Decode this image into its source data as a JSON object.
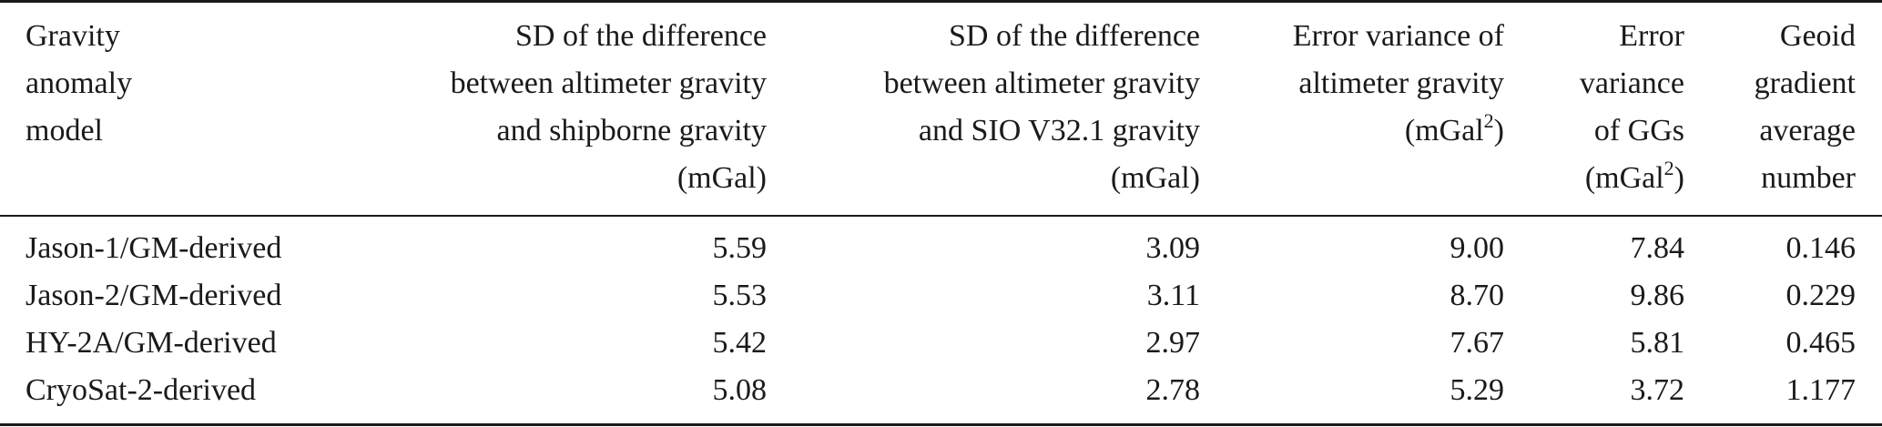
{
  "table": {
    "headers": [
      {
        "lines": [
          "Gravity",
          "anomaly",
          "model"
        ],
        "align": "left"
      },
      {
        "lines": [
          "SD of the difference",
          "between altimeter gravity",
          "and shipborne gravity",
          "(mGal)"
        ],
        "align": "right"
      },
      {
        "lines": [
          "SD of the difference",
          "between altimeter gravity",
          "and SIO V32.1 gravity",
          "(mGal)"
        ],
        "align": "right"
      },
      {
        "lines": [
          "Error variance of",
          "altimeter gravity",
          "(mGal",
          "2",
          ")"
        ],
        "align": "right"
      },
      {
        "lines": [
          "Error",
          "variance",
          "of GGs",
          "(mGal",
          "2",
          ")"
        ],
        "align": "right"
      },
      {
        "lines": [
          "Geoid",
          "gradient",
          "average",
          "number"
        ],
        "align": "right"
      }
    ],
    "rows": [
      [
        "Jason-1/GM-derived",
        "5.59",
        "3.09",
        "9.00",
        "7.84",
        "0.146"
      ],
      [
        "Jason-2/GM-derived",
        "5.53",
        "3.11",
        "8.70",
        "9.86",
        "0.229"
      ],
      [
        "HY-2A/GM-derived",
        "5.42",
        "2.97",
        "7.67",
        "5.81",
        "0.465"
      ],
      [
        "CryoSat-2-derived",
        "5.08",
        "2.78",
        "5.29",
        "3.72",
        "1.177"
      ]
    ]
  }
}
